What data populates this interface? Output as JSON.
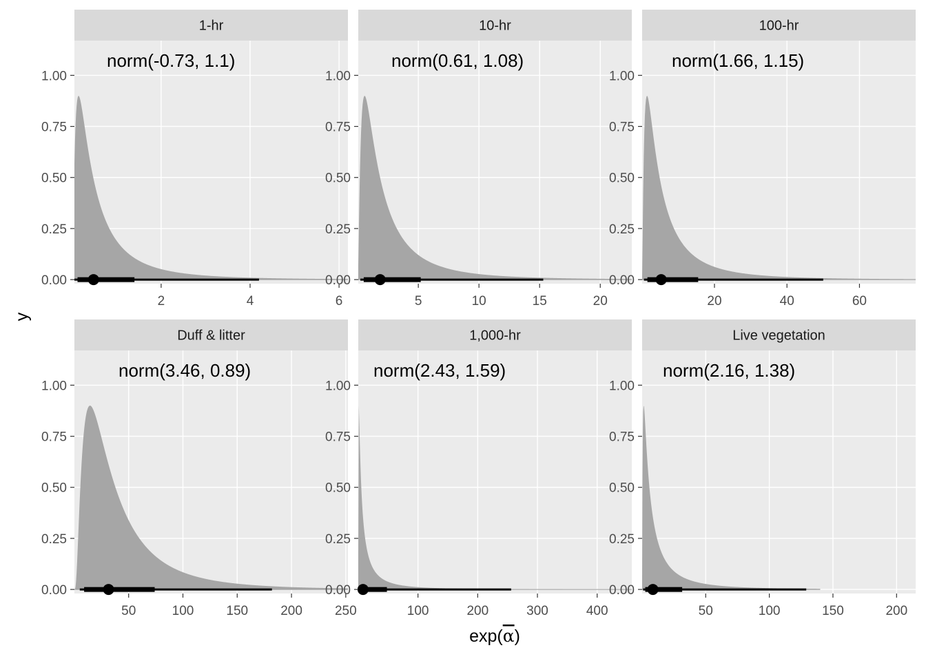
{
  "figure": {
    "ylabel": "y",
    "xlabel_prefix": "exp(",
    "xlabel_symbol": "α",
    "xlabel_suffix": ")"
  },
  "colors": {
    "panel_bg": "#ebebeb",
    "strip_bg": "#d9d9d9",
    "gridline": "#ffffff",
    "density_fill": "#a6a6a6",
    "interval": "#000000"
  },
  "chart_data": [
    {
      "type": "area",
      "title": "1-hr",
      "annotation": "norm(-0.73, 1.1)",
      "mu": -0.73,
      "sigma": 1.1,
      "xlim": [
        0.05,
        6.2
      ],
      "xticks": [
        2,
        4,
        6
      ],
      "ylim": [
        -0.02,
        1.17
      ],
      "yticks": [
        0,
        0.25,
        0.5,
        0.75,
        1
      ],
      "ytick_labels": [
        "0.00",
        "0.25",
        "0.50",
        "0.75",
        "1.00"
      ],
      "density_peak": 0.9,
      "density_xmax": 6.2,
      "point": 0.48,
      "interval_66": [
        0.12,
        1.4
      ],
      "interval_95": [
        0.05,
        4.2
      ]
    },
    {
      "type": "area",
      "title": "10-hr",
      "annotation": "norm(0.61, 1.08)",
      "mu": 0.61,
      "sigma": 1.08,
      "xlim": [
        0.05,
        22.6
      ],
      "xticks": [
        5,
        10,
        15,
        20
      ],
      "ylim": [
        -0.02,
        1.17
      ],
      "yticks": [
        0,
        0.25,
        0.5,
        0.75,
        1
      ],
      "ytick_labels": [
        "0.00",
        "0.25",
        "0.50",
        "0.75",
        "1.00"
      ],
      "density_peak": 0.9,
      "density_xmax": 22.6,
      "point": 1.85,
      "interval_66": [
        0.5,
        5.2
      ],
      "interval_95": [
        0.22,
        15.3
      ]
    },
    {
      "type": "area",
      "title": "100-hr",
      "annotation": "norm(1.66, 1.15)",
      "mu": 1.66,
      "sigma": 1.15,
      "xlim": [
        0.05,
        75.5
      ],
      "xticks": [
        20,
        40,
        60
      ],
      "ylim": [
        -0.02,
        1.17
      ],
      "yticks": [
        0,
        0.25,
        0.5,
        0.75,
        1
      ],
      "ytick_labels": [
        "0.00",
        "0.25",
        "0.50",
        "0.75",
        "1.00"
      ],
      "density_peak": 0.9,
      "density_xmax": 75.5,
      "point": 5.3,
      "interval_66": [
        1.5,
        15.5
      ],
      "interval_95": [
        0.55,
        50
      ]
    },
    {
      "type": "area",
      "title": "Duff & litter",
      "annotation": "norm(3.46, 0.89)",
      "mu": 3.46,
      "sigma": 0.89,
      "xlim": [
        0.05,
        252
      ],
      "xticks": [
        50,
        100,
        150,
        200,
        250
      ],
      "ylim": [
        -0.02,
        1.17
      ],
      "yticks": [
        0,
        0.25,
        0.5,
        0.75,
        1
      ],
      "ytick_labels": [
        "0.00",
        "0.25",
        "0.50",
        "0.75",
        "1.00"
      ],
      "density_peak": 0.9,
      "density_xmax": 252,
      "point": 31.5,
      "interval_66": [
        9,
        74
      ],
      "interval_95": [
        5,
        182
      ]
    },
    {
      "type": "area",
      "title": "1,000-hr",
      "annotation": "norm(2.43, 1.59)",
      "mu": 2.43,
      "sigma": 1.59,
      "xlim": [
        0.05,
        458
      ],
      "xticks": [
        100,
        200,
        300,
        400
      ],
      "ylim": [
        -0.02,
        1.17
      ],
      "yticks": [
        0,
        0.25,
        0.5,
        0.75,
        1
      ],
      "ytick_labels": [
        "0.00",
        "0.25",
        "0.50",
        "0.75",
        "1.00"
      ],
      "density_peak": 0.9,
      "density_xmax": 458,
      "point": 8,
      "interval_66": [
        1.5,
        48
      ],
      "interval_95": [
        0.5,
        256
      ]
    },
    {
      "type": "area",
      "title": "Live vegetation",
      "annotation": "norm(2.16, 1.38)",
      "mu": 2.16,
      "sigma": 1.38,
      "xlim": [
        0.05,
        215
      ],
      "xticks": [
        50,
        100,
        150,
        200
      ],
      "ylim": [
        -0.02,
        1.17
      ],
      "yticks": [
        0,
        0.25,
        0.5,
        0.75,
        1
      ],
      "ytick_labels": [
        "0.00",
        "0.25",
        "0.50",
        "0.75",
        "1.00"
      ],
      "density_peak": 0.9,
      "density_xmax": 140,
      "point": 8.5,
      "interval_66": [
        2.5,
        31.5
      ],
      "interval_95": [
        0.8,
        129
      ]
    }
  ]
}
